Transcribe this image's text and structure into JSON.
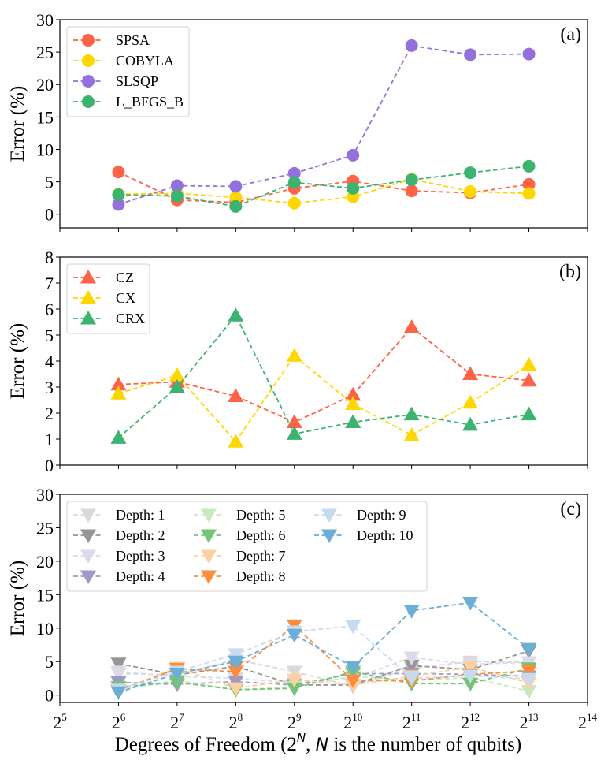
{
  "chart_data": [
    {
      "type": "line",
      "panel_label": "(a)",
      "ylabel": "Error (%)",
      "ylim": [
        -2.1,
        30
      ],
      "yticks": [
        0,
        5,
        10,
        15,
        20,
        25,
        30
      ],
      "marker": "circle",
      "legend_position": "top-left",
      "x_exponents": [
        6,
        7,
        8,
        9,
        10,
        11,
        12,
        13
      ],
      "series": [
        {
          "name": "SPSA",
          "color": "#ff6347",
          "values": [
            6.5,
            2.2,
            1.8,
            4.0,
            5.1,
            3.6,
            3.3,
            4.6
          ]
        },
        {
          "name": "COBYLA",
          "color": "#ffd700",
          "values": [
            3.1,
            3.2,
            2.6,
            1.7,
            2.7,
            5.4,
            3.5,
            3.2
          ]
        },
        {
          "name": "SLSQP",
          "color": "#9370db",
          "values": [
            1.5,
            4.4,
            4.3,
            6.3,
            9.1,
            26.0,
            24.6,
            24.7
          ]
        },
        {
          "name": "L_BFGS_B",
          "color": "#3cb371",
          "values": [
            3.0,
            2.8,
            1.2,
            4.9,
            4.0,
            5.3,
            6.4,
            7.4
          ]
        }
      ]
    },
    {
      "type": "line",
      "panel_label": "(b)",
      "ylabel": "Error (%)",
      "ylim": [
        0,
        8
      ],
      "yticks": [
        0,
        1,
        2,
        3,
        4,
        5,
        6,
        7,
        8
      ],
      "marker": "triangle-up",
      "legend_position": "top-left",
      "x_exponents": [
        6,
        7,
        8,
        9,
        10,
        11,
        12,
        13
      ],
      "series": [
        {
          "name": "CZ",
          "color": "#ff6347",
          "values": [
            3.1,
            3.2,
            2.65,
            1.65,
            2.7,
            5.3,
            3.5,
            3.25
          ]
        },
        {
          "name": "CX",
          "color": "#ffd700",
          "values": [
            2.75,
            3.45,
            0.9,
            4.2,
            2.35,
            1.15,
            2.4,
            3.85
          ]
        },
        {
          "name": "CRX",
          "color": "#3cb371",
          "values": [
            1.05,
            3.0,
            5.75,
            1.2,
            1.65,
            1.95,
            1.55,
            1.95
          ]
        }
      ]
    },
    {
      "type": "line",
      "panel_label": "(c)",
      "ylabel": "Error (%)",
      "ylim": [
        -1.1,
        30
      ],
      "yticks": [
        0,
        5,
        10,
        15,
        20,
        25,
        30
      ],
      "marker": "triangle-down",
      "legend_position": "top-left",
      "legend_columns": 3,
      "x_exponents": [
        6,
        7,
        8,
        9,
        10,
        11,
        12,
        13
      ],
      "xlabel": "Degrees of Freedom (2^N, N is the number of qubits)",
      "xtick_exponents": [
        5,
        6,
        7,
        8,
        9,
        10,
        11,
        12,
        13,
        14
      ],
      "series": [
        {
          "name": "Depth: 1",
          "color": "#d9d9d9",
          "values": [
            3.2,
            3.0,
            5.3,
            3.5,
            1.3,
            4.0,
            5.0,
            4.9
          ]
        },
        {
          "name": "Depth: 2",
          "color": "#969696",
          "values": [
            4.7,
            3.0,
            4.3,
            1.5,
            1.5,
            4.4,
            3.8,
            6.6
          ]
        },
        {
          "name": "Depth: 3",
          "color": "#dadaeb",
          "values": [
            3.5,
            2.8,
            2.5,
            1.8,
            2.5,
            5.6,
            4.6,
            4.9
          ]
        },
        {
          "name": "Depth: 4",
          "color": "#9e9ac8",
          "values": [
            1.9,
            1.6,
            2.0,
            1.5,
            3.2,
            3.2,
            3.1,
            2.8
          ]
        },
        {
          "name": "Depth: 5",
          "color": "#c7e9c0",
          "values": [
            0.8,
            2.2,
            0.8,
            1.2,
            2.8,
            2.2,
            2.6,
            0.6
          ]
        },
        {
          "name": "Depth: 6",
          "color": "#74c476",
          "values": [
            1.2,
            1.9,
            0.8,
            1.0,
            3.5,
            1.7,
            1.7,
            4.0
          ]
        },
        {
          "name": "Depth: 7",
          "color": "#fdd0a2",
          "values": [
            0.6,
            4.1,
            1.0,
            2.3,
            1.5,
            2.8,
            4.2,
            1.8
          ]
        },
        {
          "name": "Depth: 8",
          "color": "#fd8d3c",
          "values": [
            0.7,
            3.9,
            3.5,
            10.4,
            2.2,
            2.1,
            3.1,
            3.6
          ]
        },
        {
          "name": "Depth: 9",
          "color": "#c6dbef",
          "values": [
            0.8,
            3.5,
            6.1,
            9.5,
            10.3,
            2.5,
            2.9,
            2.4
          ]
        },
        {
          "name": "Depth: 10",
          "color": "#6baed6",
          "values": [
            0.4,
            3.2,
            5.0,
            9.0,
            4.2,
            12.6,
            13.8,
            6.9
          ]
        }
      ]
    }
  ],
  "xlabel": {
    "prefix": "Degrees of Freedom (2",
    "sup": "N",
    "middle": ", ",
    "italic": "N",
    "suffix": " is the number of qubits)"
  },
  "xticks": {
    "base": "2",
    "exponents": [
      "5",
      "6",
      "7",
      "8",
      "9",
      "10",
      "11",
      "12",
      "13",
      "14"
    ]
  }
}
